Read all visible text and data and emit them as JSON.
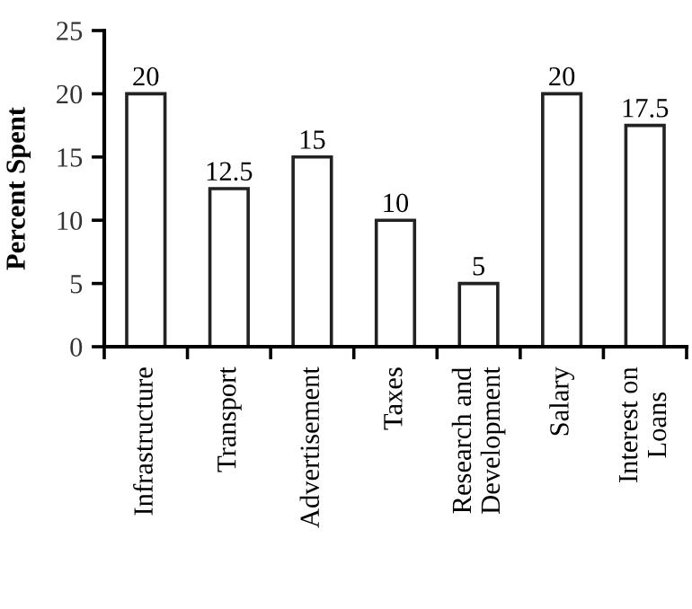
{
  "chart_data": {
    "type": "bar",
    "ylabel": "Percent Spent",
    "categories": [
      "Infrastructure",
      "Transport",
      "Advertisement",
      "Taxes",
      "Research and\nDevelopment",
      "Salary",
      "Interest on\nLoans"
    ],
    "values": [
      20,
      12.5,
      15,
      10,
      5,
      20,
      17.5
    ],
    "color": "#ffffff",
    "ylim": [
      0,
      25
    ],
    "yticks": [
      0,
      5,
      10,
      15,
      20,
      25
    ],
    "data_labels": true,
    "grid": false,
    "legend": false
  }
}
